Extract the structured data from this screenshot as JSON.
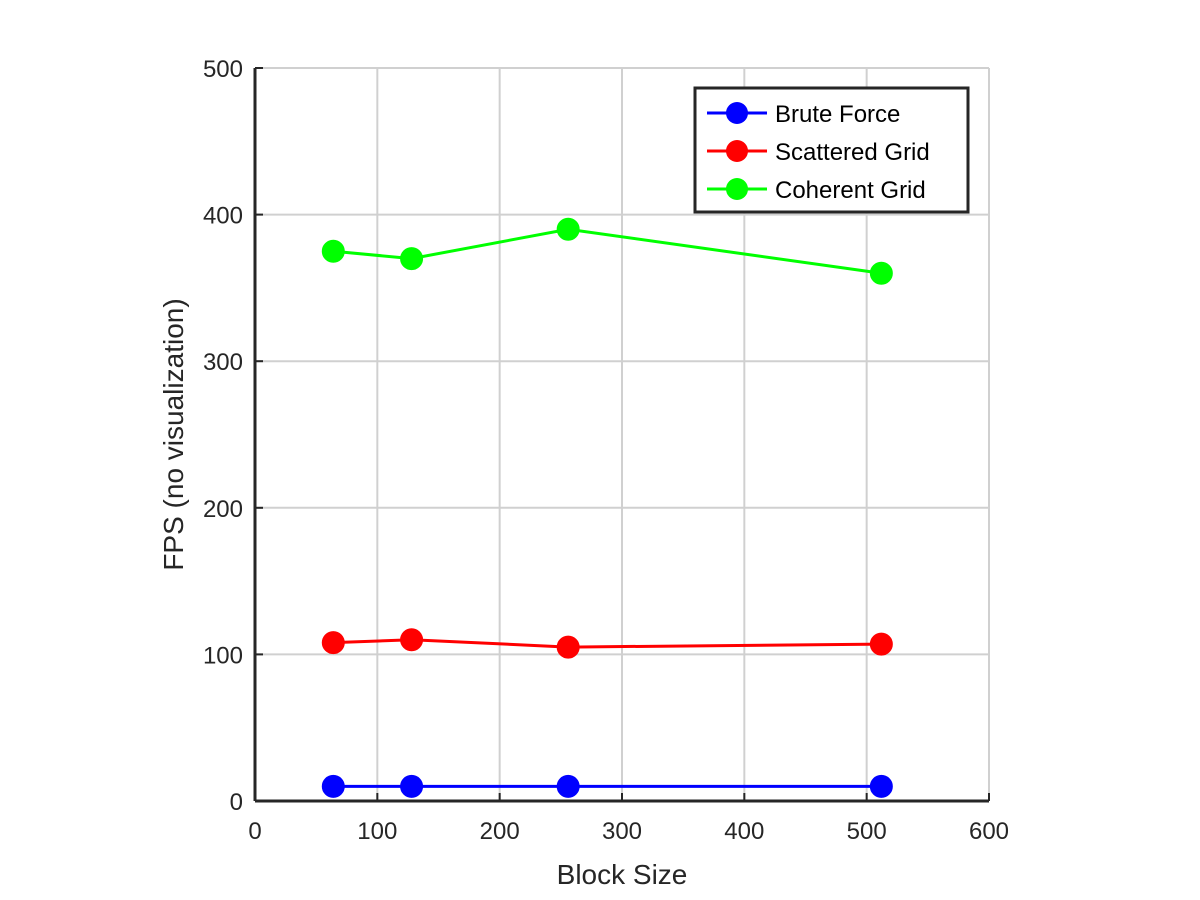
{
  "chart_data": {
    "type": "line",
    "title": "",
    "xlabel": "Block Size",
    "ylabel": "FPS (no visualization)",
    "xlim": [
      0,
      600
    ],
    "ylim": [
      0,
      500
    ],
    "xticks": [
      0,
      100,
      200,
      300,
      400,
      500,
      600
    ],
    "yticks": [
      0,
      100,
      200,
      300,
      400,
      500
    ],
    "grid": true,
    "legend_position": "top-right",
    "x": [
      64,
      128,
      256,
      512
    ],
    "series": [
      {
        "name": "Brute Force",
        "color": "#0000ff",
        "marker": "circle",
        "values": [
          10,
          10,
          10,
          10
        ]
      },
      {
        "name": "Scattered Grid",
        "color": "#ff0000",
        "marker": "circle",
        "values": [
          108,
          110,
          105,
          107
        ]
      },
      {
        "name": "Coherent Grid",
        "color": "#00ff00",
        "marker": "circle",
        "values": [
          375,
          370,
          390,
          360
        ]
      }
    ]
  }
}
